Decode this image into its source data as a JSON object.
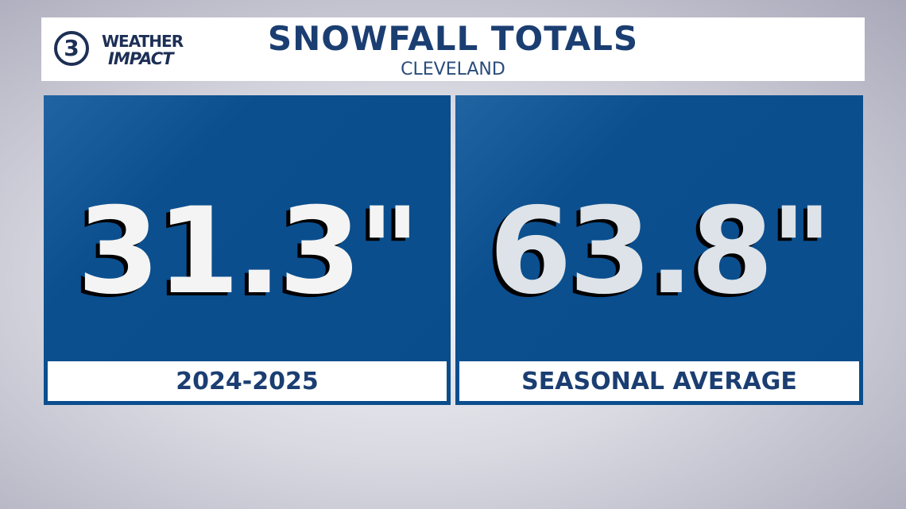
{
  "header": {
    "logo": {
      "number": "3",
      "line1": "WEATHER",
      "line2": "IMPACT"
    },
    "title": "SNOWFALL TOTALS",
    "subtitle": "CLEVELAND"
  },
  "panels": [
    {
      "value": "31.3\"",
      "label": "2024-2025"
    },
    {
      "value": "63.8\"",
      "label": "SEASONAL AVERAGE"
    }
  ]
}
